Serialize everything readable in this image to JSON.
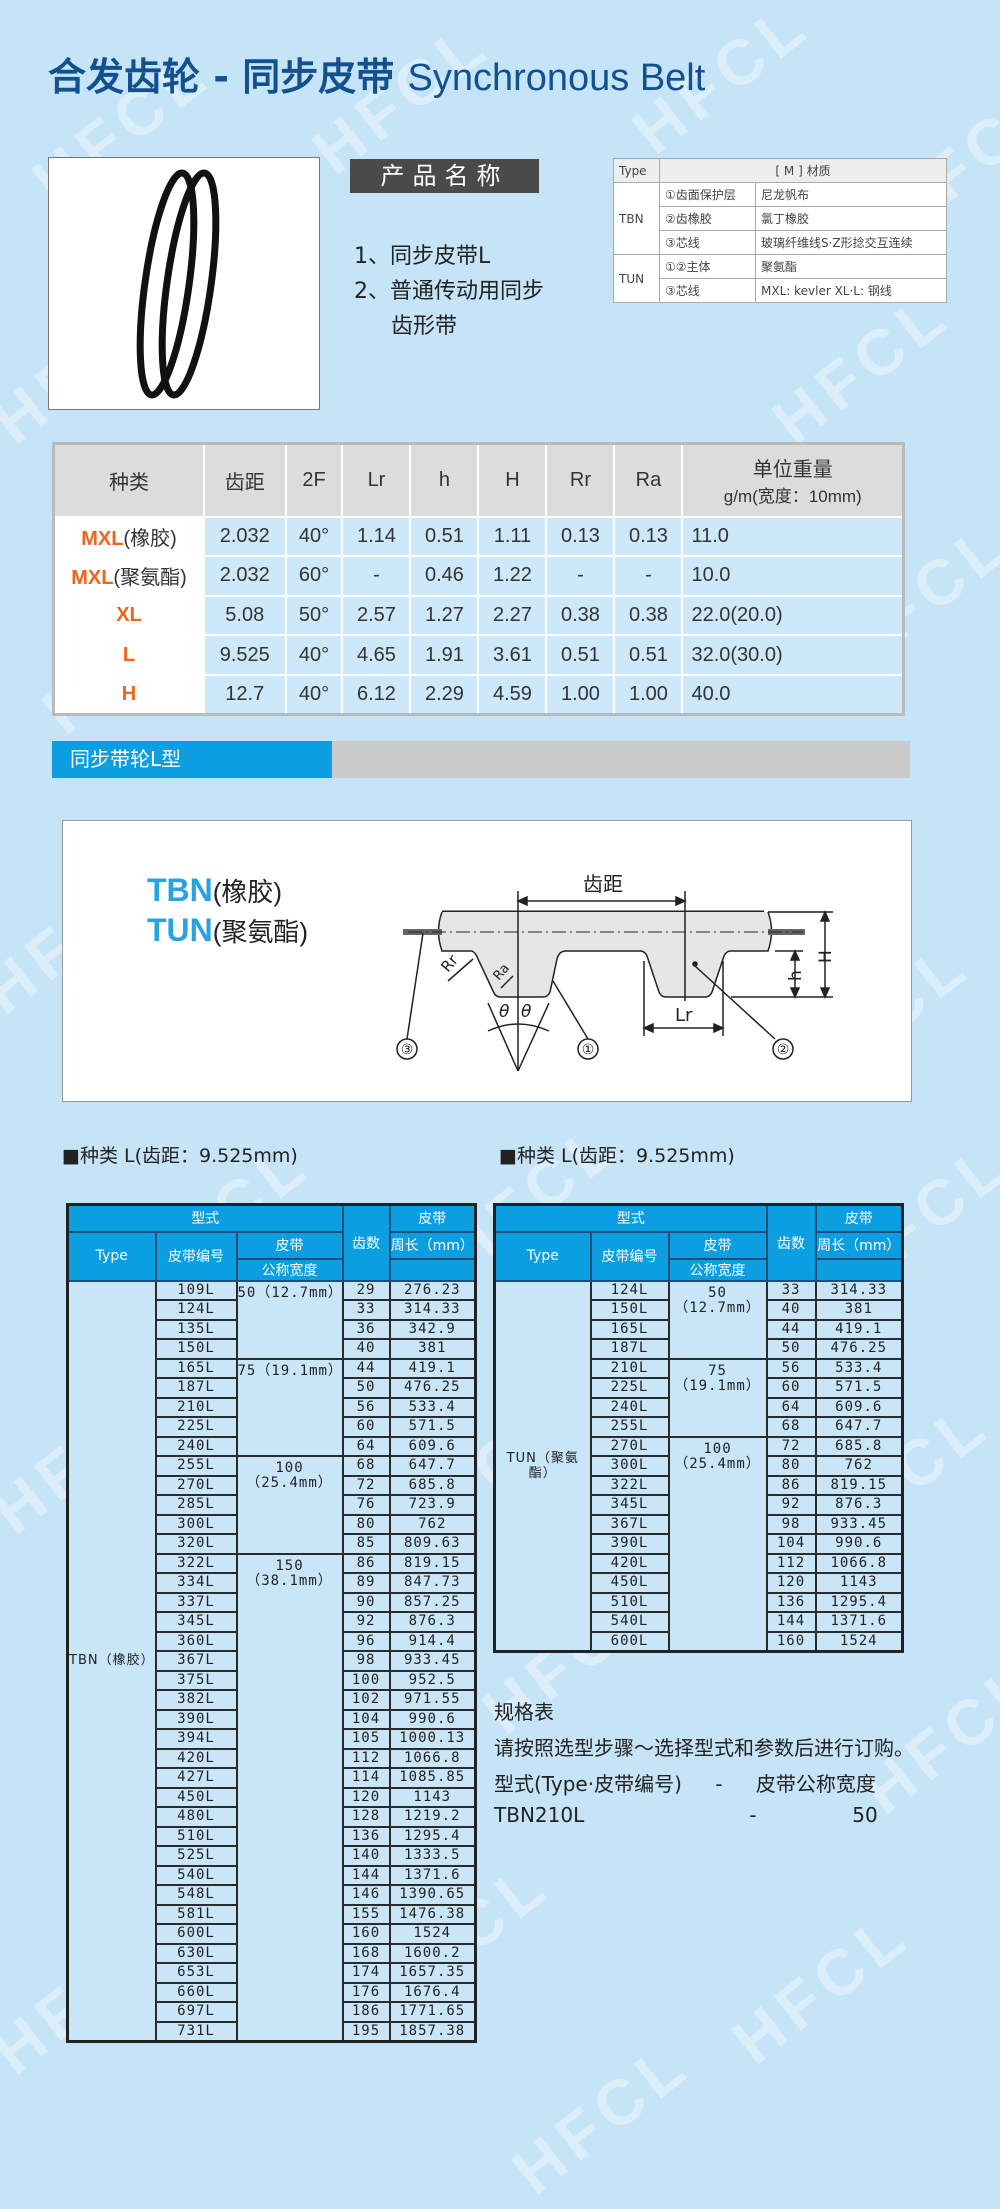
{
  "watermark": "HFCL",
  "header": {
    "title_cn": "合发齿轮 - 同步皮带",
    "title_en": "Synchronous Belt"
  },
  "product": {
    "name_label": "产品名称",
    "features": [
      "1、同步皮带L",
      "2、普通传动用同步",
      "齿形带"
    ]
  },
  "material_table": {
    "headers": [
      "Type",
      "[ M ] 材质"
    ],
    "groups": [
      {
        "type": "TBN",
        "rows": [
          [
            "①齿面保护层",
            "尼龙帆布"
          ],
          [
            "②齿橡胶",
            "氯丁橡胶"
          ],
          [
            "③芯线",
            "玻璃纤维线S·Z形捻交互连续"
          ]
        ]
      },
      {
        "type": "TUN",
        "rows": [
          [
            "①②主体",
            "聚氨酯"
          ],
          [
            "③芯线",
            "MXL: kevler XL·L: 钢线"
          ]
        ]
      }
    ]
  },
  "spec_table": {
    "headers": [
      "种类",
      "齿距",
      "2F",
      "Lr",
      "h",
      "H",
      "Rr",
      "Ra"
    ],
    "weight_header": [
      "单位重量",
      "g/m(宽度：10mm)"
    ],
    "rows": [
      {
        "kind": "MXL",
        "sub": "(橡胶)",
        "values": [
          "2.032",
          "40°",
          "1.14",
          "0.51",
          "1.11",
          "0.13",
          "0.13",
          "11.0"
        ]
      },
      {
        "kind": "MXL",
        "sub": "(聚氨酯)",
        "values": [
          "2.032",
          "60°",
          "-",
          "0.46",
          "1.22",
          "-",
          "-",
          "10.0"
        ]
      },
      {
        "kind": "XL",
        "sub": "",
        "values": [
          "5.08",
          "50°",
          "2.57",
          "1.27",
          "2.27",
          "0.38",
          "0.38",
          "22.0(20.0)"
        ]
      },
      {
        "kind": "L",
        "sub": "",
        "values": [
          "9.525",
          "40°",
          "4.65",
          "1.91",
          "3.61",
          "0.51",
          "0.51",
          "32.0(30.0)"
        ]
      },
      {
        "kind": "H",
        "sub": "",
        "values": [
          "12.7",
          "40°",
          "6.12",
          "2.29",
          "4.59",
          "1.00",
          "1.00",
          "40.0"
        ]
      }
    ],
    "kind_color": "#f0641e"
  },
  "section": {
    "title": "同步带轮L型"
  },
  "diagram": {
    "tbn": "TBN",
    "tbn_sub": "(橡胶)",
    "tun": "TUN",
    "tun_sub": "(聚氨酯)",
    "pitch_label": "齿距",
    "labels": {
      "rr": "Rr",
      "ra": "Ra",
      "theta": "θ",
      "lr": "Lr",
      "h": "h",
      "H": "H",
      "c1": "①",
      "c2": "②",
      "c3": "③"
    }
  },
  "tables_heading": "■种类 L(齿距：9.525mm)",
  "table_headers": {
    "model": "型式",
    "type": "Type",
    "belt_no": "皮带编号",
    "belt": "皮带",
    "width": "公称宽度",
    "teeth": "齿数",
    "belt2": "皮带",
    "length": "周长（mm）"
  },
  "tbn_table": {
    "type": "TBN（橡胶）",
    "groups": [
      {
        "width": "50（12.7mm）",
        "rows": [
          [
            "109L",
            "29",
            "276.23"
          ],
          [
            "124L",
            "33",
            "314.33"
          ],
          [
            "135L",
            "36",
            "342.9"
          ],
          [
            "150L",
            "40",
            "381"
          ]
        ]
      },
      {
        "width": "75（19.1mm）",
        "rows": [
          [
            "165L",
            "44",
            "419.1"
          ],
          [
            "187L",
            "50",
            "476.25"
          ],
          [
            "210L",
            "56",
            "533.4"
          ],
          [
            "225L",
            "60",
            "571.5"
          ],
          [
            "240L",
            "64",
            "609.6"
          ]
        ]
      },
      {
        "width": "100（25.4mm）",
        "rows": [
          [
            "255L",
            "68",
            "647.7"
          ],
          [
            "270L",
            "72",
            "685.8"
          ],
          [
            "285L",
            "76",
            "723.9"
          ],
          [
            "300L",
            "80",
            "762"
          ],
          [
            "320L",
            "85",
            "809.63"
          ]
        ]
      },
      {
        "width": "150（38.1mm）",
        "rows": [
          [
            "322L",
            "86",
            "819.15"
          ],
          [
            "334L",
            "89",
            "847.73"
          ],
          [
            "337L",
            "90",
            "857.25"
          ],
          [
            "345L",
            "92",
            "876.3"
          ],
          [
            "360L",
            "96",
            "914.4"
          ],
          [
            "367L",
            "98",
            "933.45"
          ],
          [
            "375L",
            "100",
            "952.5"
          ],
          [
            "382L",
            "102",
            "971.55"
          ],
          [
            "390L",
            "104",
            "990.6"
          ],
          [
            "394L",
            "105",
            "1000.13"
          ],
          [
            "420L",
            "112",
            "1066.8"
          ],
          [
            "427L",
            "114",
            "1085.85"
          ],
          [
            "450L",
            "120",
            "1143"
          ],
          [
            "480L",
            "128",
            "1219.2"
          ],
          [
            "510L",
            "136",
            "1295.4"
          ],
          [
            "525L",
            "140",
            "1333.5"
          ],
          [
            "540L",
            "144",
            "1371.6"
          ],
          [
            "548L",
            "146",
            "1390.65"
          ],
          [
            "581L",
            "155",
            "1476.38"
          ],
          [
            "600L",
            "160",
            "1524"
          ],
          [
            "630L",
            "168",
            "1600.2"
          ],
          [
            "653L",
            "174",
            "1657.35"
          ],
          [
            "660L",
            "176",
            "1676.4"
          ],
          [
            "697L",
            "186",
            "1771.65"
          ],
          [
            "731L",
            "195",
            "1857.38"
          ]
        ]
      }
    ]
  },
  "tun_table": {
    "type": "TUN（聚氨酯）",
    "groups": [
      {
        "width": "50（12.7mm）",
        "rows": [
          [
            "124L",
            "33",
            "314.33"
          ],
          [
            "150L",
            "40",
            "381"
          ],
          [
            "165L",
            "44",
            "419.1"
          ],
          [
            "187L",
            "50",
            "476.25"
          ]
        ]
      },
      {
        "width": "75（19.1mm）",
        "rows": [
          [
            "210L",
            "56",
            "533.4"
          ],
          [
            "225L",
            "60",
            "571.5"
          ],
          [
            "240L",
            "64",
            "609.6"
          ],
          [
            "255L",
            "68",
            "647.7"
          ]
        ]
      },
      {
        "width": "100（25.4mm）",
        "rows": [
          [
            "270L",
            "72",
            "685.8"
          ],
          [
            "300L",
            "80",
            "762"
          ],
          [
            "322L",
            "86",
            "819.15"
          ],
          [
            "345L",
            "92",
            "876.3"
          ],
          [
            "367L",
            "98",
            "933.45"
          ],
          [
            "390L",
            "104",
            "990.6"
          ],
          [
            "420L",
            "112",
            "1066.8"
          ],
          [
            "450L",
            "120",
            "1143"
          ],
          [
            "510L",
            "136",
            "1295.4"
          ],
          [
            "540L",
            "144",
            "1371.6"
          ],
          [
            "600L",
            "160",
            "1524"
          ]
        ]
      }
    ]
  },
  "order_note": {
    "title": "规格表",
    "instruction": "请按照选型步骤～选择型式和参数后进行订购。",
    "format_left": "型式(Type·皮带编号)",
    "format_dash": "-",
    "format_right": "皮带公称宽度",
    "example_left": "TBN210L",
    "example_dash": "-",
    "example_right": "50"
  },
  "colors": {
    "header_blue": "#0b9ee0",
    "background": "#c6e4f7",
    "title": "#13508f"
  }
}
